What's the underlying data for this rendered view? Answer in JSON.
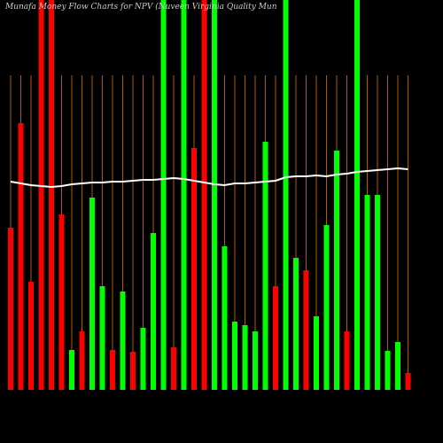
{
  "chart_data": {
    "type": "bar",
    "title": "Munafa Money Flow Charts for NPV (Nuveen Virginia Quality Mun",
    "categories": [
      null,
      null,
      null,
      null,
      null,
      null,
      null,
      null,
      null,
      null,
      null,
      null,
      null,
      null,
      null,
      null,
      null,
      null,
      null,
      null,
      null,
      null,
      null,
      null,
      null,
      null,
      null,
      null,
      null,
      null,
      null,
      null,
      null,
      null,
      null,
      null,
      null,
      null,
      null,
      null
    ],
    "values": [
      183,
      301,
      122,
      460,
      460,
      198,
      45,
      66,
      217,
      117,
      45,
      111,
      43,
      70,
      177,
      460,
      48,
      460,
      273,
      460,
      460,
      162,
      77,
      73,
      66,
      280,
      117,
      460,
      149,
      135,
      83,
      186,
      270,
      66,
      460,
      220,
      220,
      44,
      54,
      19
    ],
    "bar_colors": [
      "#ff0000",
      "#ff0000",
      "#ff0000",
      "#ff0000",
      "#ff0000",
      "#ff0000",
      "#00ff00",
      "#ff0000",
      "#00ff00",
      "#00ff00",
      "#ff0000",
      "#00ff00",
      "#ff0000",
      "#00ff00",
      "#00ff00",
      "#00ff00",
      "#ff0000",
      "#00ff00",
      "#ff0000",
      "#ff0000",
      "#00ff00",
      "#00ff00",
      "#00ff00",
      "#00ff00",
      "#00ff00",
      "#00ff00",
      "#ff0000",
      "#00ff00",
      "#00ff00",
      "#ff0000",
      "#00ff00",
      "#00ff00",
      "#00ff00",
      "#ff0000",
      "#00ff00",
      "#00ff00",
      "#00ff00",
      "#00ff00",
      "#00ff00",
      "#ff0000"
    ],
    "line": {
      "color": "#ffffff",
      "values": [
        235,
        233,
        231,
        230,
        229,
        230,
        232,
        233,
        234,
        234,
        235,
        235,
        236,
        237,
        237,
        238,
        239,
        238,
        236,
        234,
        232,
        231,
        233,
        233,
        234,
        235,
        236,
        240,
        241,
        241,
        242,
        241,
        243,
        244,
        246,
        247,
        248,
        249,
        250,
        249
      ]
    },
    "ylim": [
      0,
      440
    ]
  }
}
